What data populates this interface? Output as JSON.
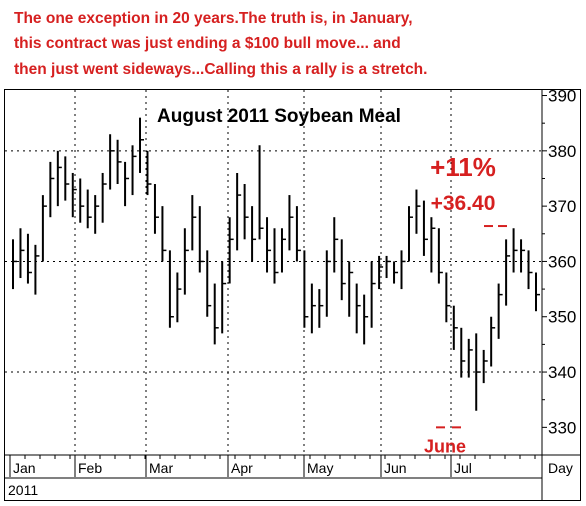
{
  "note": {
    "lines": [
      "The one exception in 20 years.The truth is, in January,",
      "this contract was just ending a $100 bull move... and",
      "then just went sideways...Calling this a rally is a stretch."
    ],
    "color": "#d62020"
  },
  "chart_data": {
    "type": "ohlc",
    "title": "August 2011 Soybean Meal",
    "y_ticks": [
      330,
      340,
      350,
      360,
      370,
      380,
      390
    ],
    "ylim": [
      325,
      391
    ],
    "gridlines": [
      340,
      360,
      380
    ],
    "x_months": [
      "Jan",
      "Feb",
      "Mar",
      "Apr",
      "May",
      "Jun",
      "Jul"
    ],
    "x_unit_label": "Day",
    "year_label": "2011",
    "bar_color": "#000000",
    "annotations": {
      "pct_gain": "+11%",
      "pts_gain": "+36.40",
      "low_label": "June",
      "low_value": 330,
      "high_value": 366.4,
      "color": "#d62020"
    },
    "bars": [
      {
        "h": 364,
        "l": 355,
        "c": 360
      },
      {
        "h": 366,
        "l": 357,
        "c": 362
      },
      {
        "h": 365,
        "l": 356,
        "c": 358
      },
      {
        "h": 363,
        "l": 354,
        "c": 361
      },
      {
        "h": 372,
        "l": 360,
        "c": 370
      },
      {
        "h": 378,
        "l": 368,
        "c": 375
      },
      {
        "h": 380,
        "l": 370,
        "c": 377
      },
      {
        "h": 379,
        "l": 371,
        "c": 374
      },
      {
        "h": 376,
        "l": 368,
        "c": 373
      },
      {
        "h": 375,
        "l": 367,
        "c": 370
      },
      {
        "h": 373,
        "l": 366,
        "c": 368
      },
      {
        "h": 372,
        "l": 365,
        "c": 370
      },
      {
        "h": 376,
        "l": 367,
        "c": 374
      },
      {
        "h": 383,
        "l": 373,
        "c": 380
      },
      {
        "h": 382,
        "l": 374,
        "c": 378
      },
      {
        "h": 378,
        "l": 370,
        "c": 375
      },
      {
        "h": 381,
        "l": 372,
        "c": 379
      },
      {
        "h": 386,
        "l": 376,
        "c": 382
      },
      {
        "h": 380,
        "l": 372,
        "c": 374
      },
      {
        "h": 374,
        "l": 365,
        "c": 368
      },
      {
        "h": 370,
        "l": 360,
        "c": 362
      },
      {
        "h": 362,
        "l": 348,
        "c": 350
      },
      {
        "h": 358,
        "l": 349,
        "c": 355
      },
      {
        "h": 366,
        "l": 354,
        "c": 362
      },
      {
        "h": 372,
        "l": 362,
        "c": 368
      },
      {
        "h": 370,
        "l": 358,
        "c": 360
      },
      {
        "h": 362,
        "l": 350,
        "c": 352
      },
      {
        "h": 356,
        "l": 345,
        "c": 348
      },
      {
        "h": 360,
        "l": 347,
        "c": 356
      },
      {
        "h": 368,
        "l": 356,
        "c": 364
      },
      {
        "h": 376,
        "l": 362,
        "c": 372
      },
      {
        "h": 374,
        "l": 364,
        "c": 368
      },
      {
        "h": 370,
        "l": 360,
        "c": 364
      },
      {
        "h": 381,
        "l": 364,
        "c": 366
      },
      {
        "h": 368,
        "l": 358,
        "c": 362
      },
      {
        "h": 366,
        "l": 356,
        "c": 358
      },
      {
        "h": 366,
        "l": 358,
        "c": 364
      },
      {
        "h": 372,
        "l": 362,
        "c": 368
      },
      {
        "h": 370,
        "l": 360,
        "c": 362
      },
      {
        "h": 362,
        "l": 348,
        "c": 350
      },
      {
        "h": 356,
        "l": 347,
        "c": 352
      },
      {
        "h": 355,
        "l": 348,
        "c": 352
      },
      {
        "h": 362,
        "l": 350,
        "c": 360
      },
      {
        "h": 368,
        "l": 358,
        "c": 364
      },
      {
        "h": 364,
        "l": 353,
        "c": 356
      },
      {
        "h": 360,
        "l": 350,
        "c": 358
      },
      {
        "h": 356,
        "l": 347,
        "c": 352
      },
      {
        "h": 354,
        "l": 345,
        "c": 350
      },
      {
        "h": 360,
        "l": 348,
        "c": 356
      },
      {
        "h": 361,
        "l": 355,
        "c": 359
      },
      {
        "h": 361,
        "l": 357,
        "c": 360
      },
      {
        "h": 360,
        "l": 356,
        "c": 358
      },
      {
        "h": 362,
        "l": 355,
        "c": 360
      },
      {
        "h": 370,
        "l": 360,
        "c": 368
      },
      {
        "h": 373,
        "l": 365,
        "c": 370
      },
      {
        "h": 371,
        "l": 361,
        "c": 364
      },
      {
        "h": 368,
        "l": 358,
        "c": 366
      },
      {
        "h": 366,
        "l": 356,
        "c": 358
      },
      {
        "h": 358,
        "l": 349,
        "c": 352
      },
      {
        "h": 352,
        "l": 344,
        "c": 348
      },
      {
        "h": 348,
        "l": 339,
        "c": 342
      },
      {
        "h": 346,
        "l": 339,
        "c": 344
      },
      {
        "h": 347,
        "l": 333,
        "c": 340
      },
      {
        "h": 344,
        "l": 338,
        "c": 342
      },
      {
        "h": 350,
        "l": 341,
        "c": 348
      },
      {
        "h": 356,
        "l": 346,
        "c": 354
      },
      {
        "h": 364,
        "l": 352,
        "c": 361
      },
      {
        "h": 366,
        "l": 358,
        "c": 362
      },
      {
        "h": 364,
        "l": 358,
        "c": 362
      },
      {
        "h": 362,
        "l": 355,
        "c": 358
      },
      {
        "h": 358,
        "l": 351,
        "c": 354
      }
    ]
  }
}
